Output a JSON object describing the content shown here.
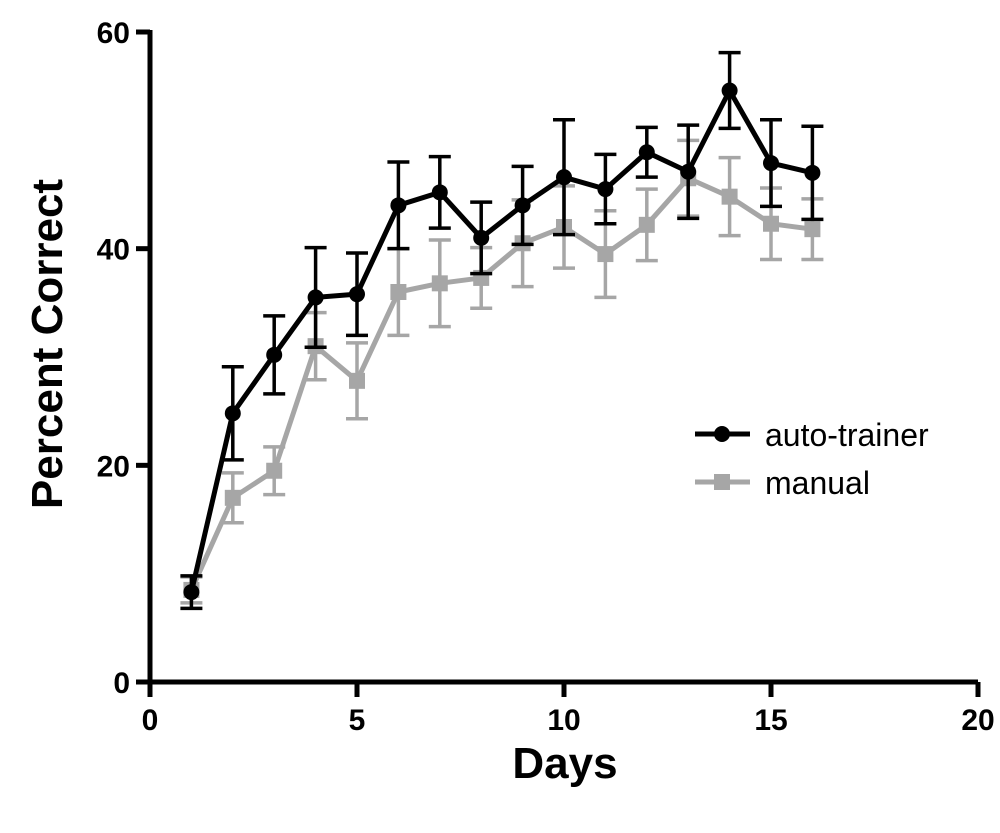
{
  "chart_data": {
    "type": "line",
    "title": "",
    "xlabel": "Days",
    "ylabel": "Percent Correct",
    "xlim": [
      0,
      20
    ],
    "ylim": [
      0,
      60
    ],
    "x_ticks": [
      0,
      5,
      10,
      15,
      20
    ],
    "y_ticks": [
      0,
      20,
      40,
      60
    ],
    "x_tick_labels": [
      "0",
      "5",
      "10",
      "15",
      "20"
    ],
    "y_tick_labels": [
      "0",
      "20",
      "40",
      "60"
    ],
    "grid": false,
    "legend_position": "right",
    "series": [
      {
        "name": "auto-trainer",
        "color": "#000000",
        "marker": "circle",
        "x": [
          1,
          2,
          3,
          4,
          5,
          6,
          7,
          8,
          9,
          10,
          11,
          12,
          13,
          14,
          15,
          16
        ],
        "values": [
          8.3,
          24.8,
          30.2,
          35.5,
          35.8,
          44.0,
          45.2,
          41.0,
          44.0,
          46.6,
          45.5,
          48.9,
          47.1,
          54.6,
          47.9,
          47.0
        ],
        "errors": [
          1.5,
          4.3,
          3.6,
          4.6,
          3.8,
          4.0,
          3.3,
          3.3,
          3.6,
          5.3,
          3.2,
          2.3,
          4.3,
          3.5,
          4.0,
          4.3
        ]
      },
      {
        "name": "manual",
        "color": "#a6a6a6",
        "marker": "square",
        "x": [
          1,
          2,
          3,
          4,
          5,
          6,
          7,
          8,
          9,
          10,
          11,
          12,
          13,
          14,
          15,
          16
        ],
        "values": [
          8.5,
          17.0,
          19.5,
          31.0,
          27.8,
          36.0,
          36.8,
          37.3,
          40.5,
          42.0,
          39.5,
          42.2,
          46.5,
          44.8,
          42.3,
          41.8
        ],
        "errors": [
          1.2,
          2.3,
          2.2,
          3.1,
          3.5,
          4.0,
          4.0,
          2.8,
          4.0,
          3.8,
          4.0,
          3.3,
          3.5,
          3.6,
          3.3,
          2.8
        ]
      }
    ]
  }
}
